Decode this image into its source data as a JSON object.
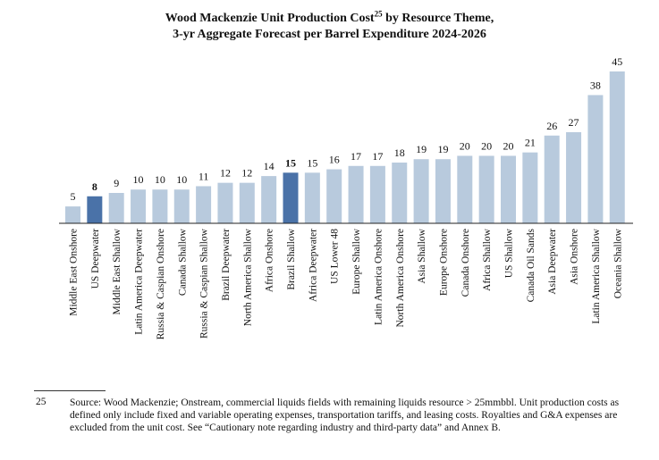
{
  "title": {
    "line1_pre": "Wood Mackenzie Unit Production Cost",
    "line1_sup": "25",
    "line1_post": " by Resource Theme,",
    "line2": "3-yr Aggregate Forecast per Barrel Expenditure 2024-2026"
  },
  "chart_data": {
    "type": "bar",
    "title": "Wood Mackenzie Unit Production Cost by Resource Theme, 3-yr Aggregate Forecast per Barrel Expenditure 2024-2026",
    "categories": [
      "Middle East Onshore",
      "US Deepwater",
      "Middle East Shallow",
      "Latin America Deepwater",
      "Russia & Caspian Onshore",
      "Canada Shallow",
      "Russia & Caspian Shallow",
      "Brazil Deepwater",
      "North America Shallow",
      "Africa Onshore",
      "Brazil Shallow",
      "Africa Deepwater",
      "US Lower 48",
      "Europe Shallow",
      "Latin America Onshore",
      "North America Onshore",
      "Asia Shallow",
      "Europe Onshore",
      "Canada Onshore",
      "Africa Shallow",
      "US Shallow",
      "Canada Oil Sands",
      "Asia Deepwater",
      "Asia Onshore",
      "Latin America Shallow",
      "Oceania Shallow"
    ],
    "values": [
      5,
      8,
      9,
      10,
      10,
      10,
      11,
      12,
      12,
      14,
      15,
      15,
      16,
      17,
      17,
      18,
      19,
      19,
      20,
      20,
      20,
      21,
      26,
      27,
      38,
      45
    ],
    "highlighted": [
      "US Deepwater",
      "Brazil Shallow"
    ],
    "ylim": [
      0,
      45
    ],
    "xlabel": "",
    "ylabel": "",
    "grid": false,
    "colors": {
      "bar": "#b8cadd",
      "highlight": "#4a72a8",
      "axis": "#222222",
      "label": "#111111"
    }
  },
  "footnote": {
    "number": "25",
    "text": "Source: Wood Mackenzie; Onstream, commercial liquids fields with remaining liquids resource > 25mmbbl. Unit production costs as defined only include fixed and variable operating expenses, transportation tariffs, and leasing costs. Royalties and G&A expenses are excluded from the unit cost. See “Cautionary note regarding industry and third-party data” and Annex B."
  }
}
